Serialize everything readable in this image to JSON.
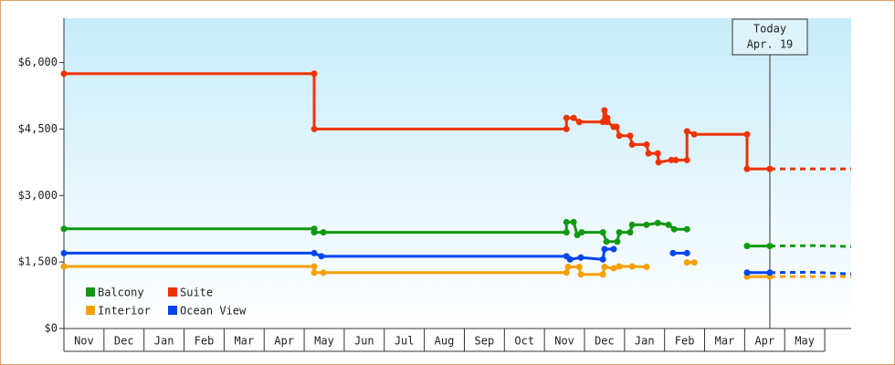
{
  "chart_data": {
    "type": "line",
    "step": true,
    "categories": [
      "Nov",
      "Dec",
      "Jan",
      "Feb",
      "Mar",
      "Apr",
      "May",
      "Jun",
      "Jul",
      "Aug",
      "Sep",
      "Oct",
      "Nov",
      "Dec",
      "Jan",
      "Feb",
      "Mar",
      "Apr",
      "May"
    ],
    "xlim": [
      0,
      19.66
    ],
    "ylim": [
      0,
      7000
    ],
    "yticks": [
      {
        "value": 0,
        "label": "$0"
      },
      {
        "value": 1500,
        "label": "$1,500"
      },
      {
        "value": 3000,
        "label": "$3,000"
      },
      {
        "value": 4500,
        "label": "$4,500"
      },
      {
        "value": 6000,
        "label": "$6,000"
      }
    ],
    "legend": "bottom-left",
    "today": {
      "x": 17.63,
      "label": "Today",
      "date": "Apr. 19"
    },
    "series": [
      {
        "name": "Balcony",
        "color": "#119911",
        "x": [
          0,
          6.25,
          6.25,
          6.48,
          12.55,
          12.55,
          12.73,
          12.82,
          12.93,
          13.46,
          13.55,
          13.82,
          13.87,
          14.14,
          14.19,
          14.55,
          14.83,
          15.1,
          15.24,
          15.56,
          15.8,
          17.06,
          17.63
        ],
        "values": [
          2250,
          2250,
          2170,
          2170,
          2170,
          2400,
          2400,
          2110,
          2170,
          2170,
          1960,
          1960,
          2170,
          2170,
          2340,
          2340,
          2380,
          2340,
          2240,
          2240,
          null,
          1860,
          1860
        ],
        "forecast": {
          "x": [
            17.63,
            18.7,
            19.66
          ],
          "values": [
            1860,
            1870,
            1850
          ]
        }
      },
      {
        "name": "Interior",
        "color": "#f5a000",
        "x": [
          0,
          6.25,
          6.25,
          6.48,
          12.55,
          12.59,
          12.87,
          12.91,
          13.46,
          13.5,
          13.73,
          13.87,
          14.19,
          14.55,
          15.0,
          15.56,
          15.74,
          16.3,
          17.06,
          17.63
        ],
        "values": [
          1400,
          1400,
          1260,
          1260,
          1260,
          1390,
          1390,
          1220,
          1220,
          1390,
          1360,
          1400,
          1400,
          1390,
          null,
          1490,
          1490,
          null,
          1170,
          1170
        ],
        "forecast": {
          "x": [
            17.63,
            19.66
          ],
          "values": [
            1170,
            1170
          ]
        }
      },
      {
        "name": "Suite",
        "color": "#ee3300",
        "x": [
          0,
          6.25,
          6.25,
          12.55,
          12.55,
          12.73,
          12.87,
          13.46,
          13.5,
          13.57,
          13.57,
          13.73,
          13.8,
          13.87,
          14.14,
          14.19,
          14.55,
          14.6,
          14.83,
          14.85,
          15.17,
          15.28,
          15.56,
          15.56,
          15.74,
          17.06,
          17.06,
          17.63
        ],
        "values": [
          5750,
          5750,
          4500,
          4500,
          4750,
          4750,
          4660,
          4660,
          4920,
          4750,
          4660,
          4550,
          4550,
          4350,
          4350,
          4150,
          4150,
          3950,
          3950,
          3750,
          3800,
          3800,
          3800,
          4450,
          4380,
          4380,
          3600,
          3600
        ],
        "forecast": {
          "x": [
            17.63,
            19.66
          ],
          "values": [
            3600,
            3600
          ]
        }
      },
      {
        "name": "Ocean View",
        "color": "#0044ee",
        "x": [
          0,
          6.25,
          6.43,
          12.55,
          12.64,
          12.91,
          13.46,
          13.5,
          13.73,
          13.9,
          15.21,
          15.56,
          16.3,
          17.06,
          17.63
        ],
        "values": [
          1700,
          1700,
          1630,
          1630,
          1560,
          1600,
          1560,
          1790,
          1790,
          null,
          1700,
          1700,
          null,
          1260,
          1260
        ],
        "forecast": {
          "x": [
            17.63,
            18.7,
            19.66
          ],
          "values": [
            1260,
            1270,
            1230
          ]
        }
      }
    ]
  }
}
